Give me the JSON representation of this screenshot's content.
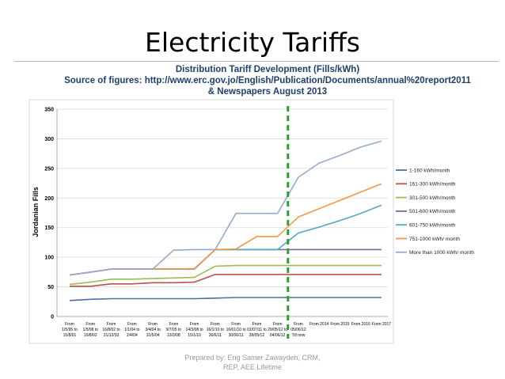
{
  "slide": {
    "title": "Electricity Tariffs",
    "footer_line1": "Prepared by: Eng Samer Zawaydeh, CRM,",
    "footer_line2": "REP, AEE Lifetime"
  },
  "chart_header": {
    "line1": "Distribution Tariff Development (Fills/kWh)",
    "line2": "Source of figures: http://www.erc.gov.jo/English/Publication/Documents/annual%20report2011",
    "line3": "& Newspapers August 2013"
  },
  "chart_data": {
    "type": "line",
    "ylabel": "Jordanian Fills",
    "ylim": [
      0,
      350
    ],
    "yticks": [
      0,
      50,
      100,
      150,
      200,
      250,
      300,
      350
    ],
    "grid": true,
    "legend_position": "right",
    "categories": [
      [
        "From",
        "1/5/95 to",
        "15/8/01"
      ],
      [
        "From",
        "1/5/98 to",
        "15/8/02"
      ],
      [
        "From",
        "16/8/02 to",
        "31/12/03"
      ],
      [
        "From",
        "1/1/04 to",
        "2/4/04"
      ],
      [
        "From",
        "3/4/04 to",
        "31/5/04"
      ],
      [
        "From",
        "9/7/05 to",
        "13/3/08"
      ],
      [
        "From",
        "14/3/08 to",
        "15/1/10"
      ],
      [
        "From",
        "16/1/10 to",
        "30/6/11"
      ],
      [
        "From",
        "16/01/10 to",
        "30/06/11"
      ],
      [
        "From",
        "01/07/11 to",
        "28/05/12"
      ],
      [
        "From",
        "29/05/12 to",
        "04/06/12"
      ],
      [
        "From",
        "05/06/12",
        "Till now"
      ],
      [
        "From 2014"
      ],
      [
        "From 2015"
      ],
      [
        "From 2016"
      ],
      [
        "From 2017"
      ]
    ],
    "series": [
      {
        "name": "1-160 kWh/month",
        "color": "#4a6fa5",
        "values": [
          27,
          29,
          30,
          30,
          30,
          30,
          30,
          31,
          32,
          32,
          32,
          32,
          32,
          32,
          32,
          32
        ]
      },
      {
        "name": "161-300 kWh/month",
        "color": "#c0504d",
        "values": [
          51,
          51,
          55,
          55,
          57,
          57,
          58,
          71,
          71,
          71,
          71,
          71,
          71,
          71,
          71,
          71
        ]
      },
      {
        "name": "301-500 kWh/month",
        "color": "#9bbb59",
        "values": [
          54,
          58,
          63,
          63,
          64,
          65,
          66,
          85,
          86,
          86,
          86,
          86,
          86,
          86,
          86,
          86
        ]
      },
      {
        "name": "501-600 kWh/month",
        "color": "#8064a2",
        "values": [
          70,
          75,
          80,
          80,
          80,
          80,
          80,
          113,
          113,
          113,
          113,
          113,
          113,
          113,
          113,
          113
        ]
      },
      {
        "name": "601-750 kWh/month",
        "color": "#4bacc6",
        "values": [
          70,
          75,
          80,
          80,
          80,
          80,
          80,
          113,
          113,
          113,
          113,
          141,
          151,
          162,
          174,
          188
        ]
      },
      {
        "name": "751-1000 kWh/ month",
        "color": "#f79646",
        "values": [
          70,
          75,
          80,
          80,
          80,
          80,
          81,
          113,
          114,
          135,
          135,
          168,
          182,
          196,
          210,
          224
        ]
      },
      {
        "name": "More than 1000 kWh/ month",
        "color": "#95a9d1",
        "values": [
          70,
          75,
          80,
          80,
          80,
          112,
          113,
          113,
          174,
          174,
          174,
          235,
          259,
          272,
          286,
          296
        ]
      }
    ],
    "annotation": {
      "type": "vertical-dashed-line",
      "color": "#2ca02c",
      "between": [
        10,
        11
      ]
    }
  }
}
